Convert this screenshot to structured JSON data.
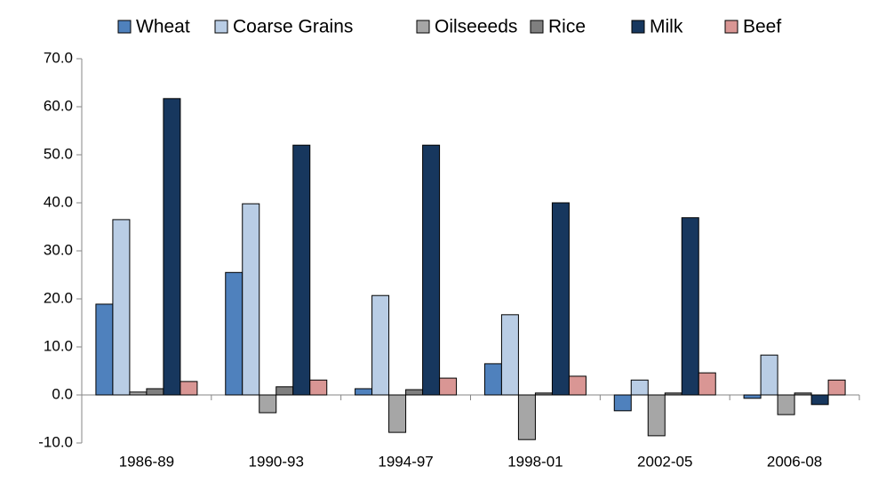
{
  "chart_data": {
    "type": "bar",
    "categories": [
      "1986-89",
      "1990-93",
      "1994-97",
      "1998-01",
      "2002-05",
      "2006-08"
    ],
    "series": [
      {
        "name": "Wheat",
        "color": "#4f81bd",
        "values": [
          18.9,
          25.5,
          1.3,
          6.5,
          -3.3,
          -0.7
        ]
      },
      {
        "name": "Coarse Grains",
        "color": "#b9cde5",
        "values": [
          36.5,
          39.8,
          20.7,
          16.7,
          3.1,
          8.3
        ]
      },
      {
        "name": "Oilseeeds",
        "color": "#a6a6a6",
        "values": [
          0.6,
          -3.7,
          -7.8,
          -9.3,
          -8.5,
          -4.1
        ]
      },
      {
        "name": "Rice",
        "color": "#7f7f7f",
        "values": [
          1.3,
          1.7,
          1.1,
          0.4,
          0.4,
          0.4
        ]
      },
      {
        "name": "Milk",
        "color": "#17375e",
        "values": [
          61.7,
          52.0,
          52.0,
          40.0,
          36.9,
          -2.0
        ]
      },
      {
        "name": "Beef",
        "color": "#d99694",
        "values": [
          2.8,
          3.1,
          3.5,
          3.9,
          4.6,
          3.1
        ]
      }
    ],
    "ylim": [
      -10,
      70
    ],
    "yticks": [
      {
        "value": -10,
        "label": "-10.0"
      },
      {
        "value": 0,
        "label": "0.0"
      },
      {
        "value": 10,
        "label": "10.0"
      },
      {
        "value": 20,
        "label": "20.0"
      },
      {
        "value": 30,
        "label": "30.0"
      },
      {
        "value": 40,
        "label": "40.0"
      },
      {
        "value": 50,
        "label": "50.0"
      },
      {
        "value": 60,
        "label": "60.0"
      },
      {
        "value": 70,
        "label": "70.0"
      }
    ],
    "grid": false,
    "legend": "top"
  }
}
